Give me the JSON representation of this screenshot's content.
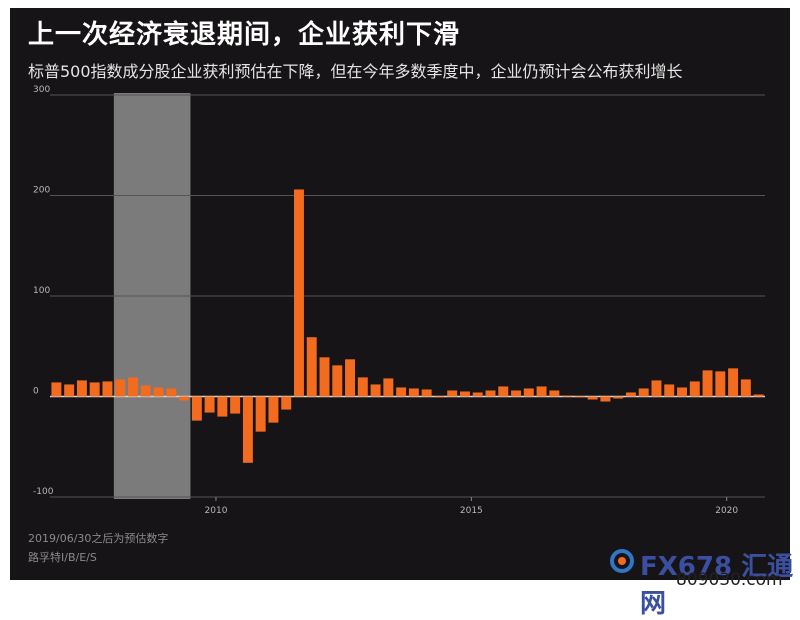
{
  "header": {
    "title": "上一次经济衰退期间，企业获利下滑",
    "subtitle": "标普500指数成分股企业获利预估在下降，但在今年多数季度中，企业仍预计会公布获利增长"
  },
  "footer": {
    "note": "2019/06/30之后为预估数字",
    "source": "路孚特I/B/E/S"
  },
  "watermark": {
    "brand": "FX678 汇通网",
    "url": "809030.com"
  },
  "colors": {
    "bar": "#f26b1f",
    "recession": "#7b7b7b",
    "grid": "#555555",
    "tick_text": "#b8b8b8"
  },
  "chart_data": {
    "type": "bar",
    "title": "上一次经济衰退期间，企业获利下滑",
    "subtitle": "标普500指数成分股企业获利预估在下降，但在今年多数季度中，企业仍预计会公布获利增长",
    "xlabel": "",
    "ylabel": "",
    "ylim": [
      -100,
      300
    ],
    "yticks": [
      300,
      200,
      100,
      0,
      -100
    ],
    "xticks": [
      {
        "label": "2010",
        "period": 2010.0
      },
      {
        "label": "2015",
        "period": 2015.0
      },
      {
        "label": "2020",
        "period": 2020.0
      }
    ],
    "xlim": [
      2006.75,
      2020.75
    ],
    "shaded_period": {
      "start": 2008.0,
      "end": 2009.5
    },
    "grid": true,
    "series": [
      {
        "x": [
          2006.875,
          2007.125,
          2007.375,
          2007.625,
          2007.875,
          2008.125,
          2008.375,
          2008.625,
          2008.875,
          2009.125,
          2009.375,
          2009.625,
          2009.875,
          2010.125,
          2010.375,
          2010.625,
          2010.875,
          2011.125,
          2011.375,
          2011.625,
          2011.875,
          2012.125,
          2012.375,
          2012.625,
          2012.875,
          2013.125,
          2013.375,
          2013.625,
          2013.875,
          2014.125,
          2014.375,
          2014.625,
          2014.875,
          2015.125,
          2015.375,
          2015.625,
          2015.875,
          2016.125,
          2016.375,
          2016.625,
          2016.875,
          2017.125,
          2017.375,
          2017.625,
          2017.875,
          2018.125,
          2018.375,
          2018.625,
          2018.875,
          2019.125,
          2019.375,
          2019.625,
          2019.875,
          2020.125,
          2020.375,
          2020.625
        ],
        "values": [
          14,
          12,
          16,
          14,
          15,
          17,
          19,
          11,
          9,
          8,
          -4,
          -24,
          -16,
          -20,
          -17,
          -66,
          -35,
          -26,
          -13,
          206,
          59,
          39,
          31,
          37,
          19,
          12,
          18,
          9,
          8,
          7,
          0,
          6,
          5,
          4,
          6,
          10,
          6,
          8,
          10,
          6,
          1,
          0,
          -3,
          -5,
          -2,
          4,
          8,
          16,
          12,
          9,
          15,
          26,
          25,
          28,
          17,
          2
        ]
      }
    ]
  }
}
